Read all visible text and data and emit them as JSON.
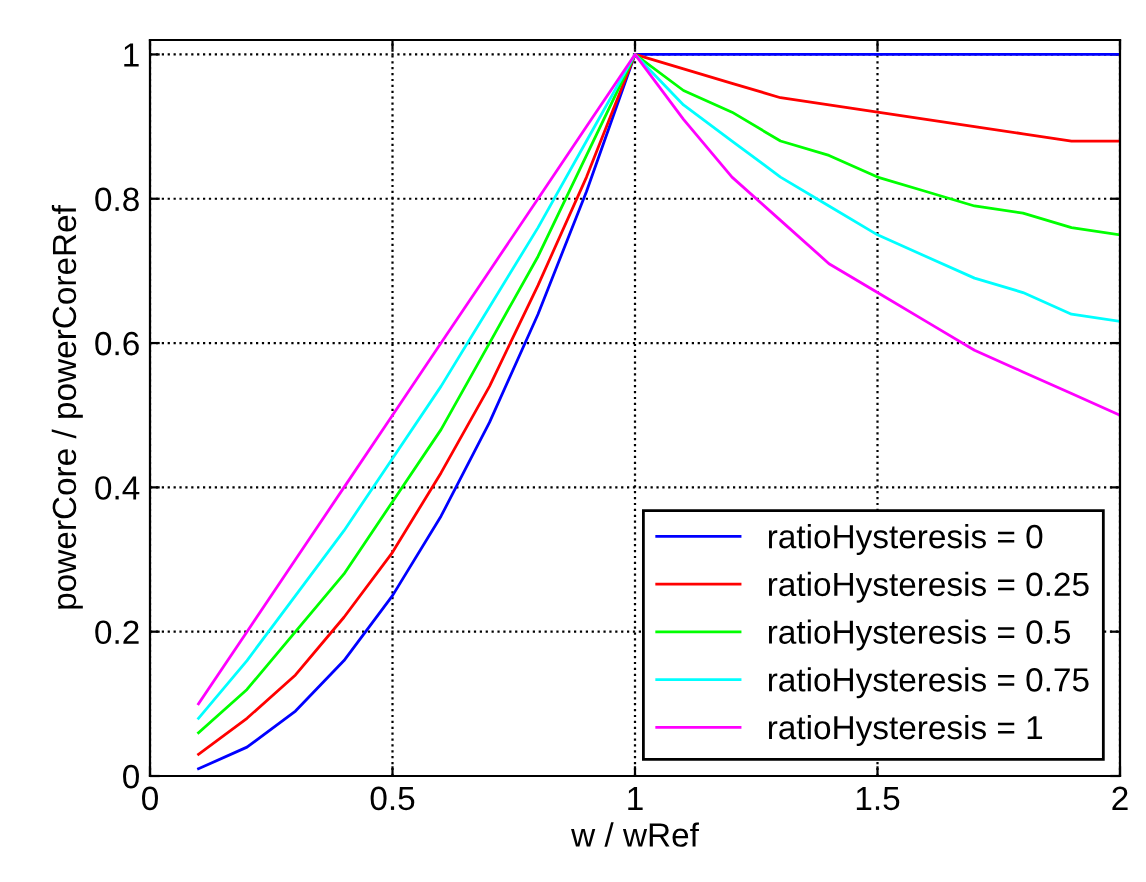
{
  "chart_data": {
    "type": "line",
    "xlabel": "w / wRef",
    "ylabel": "powerCore / powerCoreRef",
    "x": [
      0.1,
      0.2,
      0.3,
      0.4,
      0.5,
      0.6,
      0.7,
      0.8,
      0.9,
      1,
      1.1,
      1.2,
      1.3,
      1.4,
      1.5,
      1.6,
      1.7,
      1.8,
      1.9,
      2
    ],
    "series": [
      {
        "name": "ratioHysteresis = 0",
        "color": "#0000ff",
        "values": [
          0.01,
          0.04,
          0.09,
          0.16,
          0.25,
          0.36,
          0.49,
          0.64,
          0.81,
          1,
          1,
          1,
          1,
          1,
          1,
          1,
          1,
          1,
          1,
          1
        ]
      },
      {
        "name": "ratioHysteresis = 0.25",
        "color": "#ff0000",
        "values": [
          0.03,
          0.08,
          0.14,
          0.22,
          0.31,
          0.42,
          0.54,
          0.68,
          0.83,
          1,
          0.98,
          0.96,
          0.94,
          0.93,
          0.92,
          0.91,
          0.9,
          0.89,
          0.88,
          0.88
        ]
      },
      {
        "name": "ratioHysteresis = 0.5",
        "color": "#00ff00",
        "values": [
          0.06,
          0.12,
          0.2,
          0.28,
          0.38,
          0.48,
          0.6,
          0.72,
          0.86,
          1,
          0.95,
          0.92,
          0.88,
          0.86,
          0.83,
          0.81,
          0.79,
          0.78,
          0.76,
          0.75
        ]
      },
      {
        "name": "ratioHysteresis = 0.75",
        "color": "#00ffff",
        "values": [
          0.08,
          0.16,
          0.25,
          0.34,
          0.44,
          0.54,
          0.65,
          0.76,
          0.88,
          1,
          0.93,
          0.88,
          0.83,
          0.79,
          0.75,
          0.72,
          0.69,
          0.67,
          0.64,
          0.63
        ]
      },
      {
        "name": "ratioHysteresis = 1",
        "color": "#ff00ff",
        "values": [
          0.1,
          0.2,
          0.3,
          0.4,
          0.5,
          0.6,
          0.7,
          0.8,
          0.9,
          1,
          0.91,
          0.83,
          0.77,
          0.71,
          0.67,
          0.63,
          0.59,
          0.56,
          0.53,
          0.5
        ]
      }
    ],
    "xlim": [
      0,
      2
    ],
    "xticks": [
      0,
      0.5,
      1,
      1.5,
      2
    ],
    "ylim": [
      0,
      1.02
    ],
    "yticks": [
      0,
      0.2,
      0.4,
      0.6,
      0.8,
      1
    ],
    "grid": true,
    "legend": "bottom right",
    "line_style": "solid",
    "marker": "none"
  }
}
